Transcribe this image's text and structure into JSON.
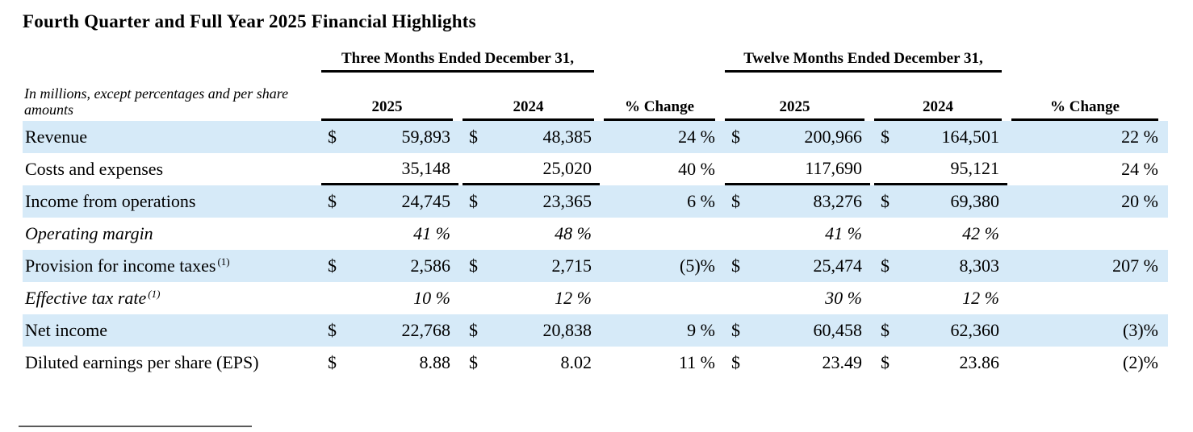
{
  "title": "Fourth Quarter and Full Year 2025 Financial Highlights",
  "table": {
    "note": "In millions, except percentages and per share amounts",
    "group_quarter": "Three Months Ended December 31,",
    "group_year": "Twelve Months Ended December 31,",
    "col_headers": {
      "q_2025": "2025",
      "q_2024": "2024",
      "q_change": "% Change",
      "y_2025": "2025",
      "y_2024": "2024",
      "y_change": "% Change"
    },
    "rows": [
      {
        "label": "Revenue",
        "sup": "",
        "d1": "$",
        "v1": "59,893",
        "d2": "$",
        "v2": "48,385",
        "p1": "24 %",
        "d3": "$",
        "v3": "200,966",
        "d4": "$",
        "v4": "164,501",
        "p2": "22 %"
      },
      {
        "label": "Costs and expenses",
        "sup": "",
        "d1": "",
        "v1": "35,148",
        "d2": "",
        "v2": "25,020",
        "p1": "40 %",
        "d3": "",
        "v3": "117,690",
        "d4": "",
        "v4": "95,121",
        "p2": "24 %"
      },
      {
        "label": "Income from operations",
        "sup": "",
        "d1": "$",
        "v1": "24,745",
        "d2": "$",
        "v2": "23,365",
        "p1": "6 %",
        "d3": "$",
        "v3": "83,276",
        "d4": "$",
        "v4": "69,380",
        "p2": "20 %"
      },
      {
        "label": "Operating margin",
        "sup": "",
        "d1": "",
        "v1": "41 %",
        "d2": "",
        "v2": "48 %",
        "p1": "",
        "d3": "",
        "v3": "41 %",
        "d4": "",
        "v4": "42 %",
        "p2": ""
      },
      {
        "label": "Provision for income taxes",
        "sup": "(1)",
        "d1": "$",
        "v1": "2,586",
        "d2": "$",
        "v2": "2,715",
        "p1": "(5)%",
        "d3": "$",
        "v3": "25,474",
        "d4": "$",
        "v4": "8,303",
        "p2": "207 %"
      },
      {
        "label": "Effective tax rate",
        "sup": "(1)",
        "d1": "",
        "v1": "10 %",
        "d2": "",
        "v2": "12 %",
        "p1": "",
        "d3": "",
        "v3": "30 %",
        "d4": "",
        "v4": "12 %",
        "p2": ""
      },
      {
        "label": "Net income",
        "sup": "",
        "d1": "$",
        "v1": "22,768",
        "d2": "$",
        "v2": "20,838",
        "p1": "9 %",
        "d3": "$",
        "v3": "60,458",
        "d4": "$",
        "v4": "62,360",
        "p2": "(3)%"
      },
      {
        "label": "Diluted earnings per share (EPS)",
        "sup": "",
        "d1": "$",
        "v1": "8.88",
        "d2": "$",
        "v2": "8.02",
        "p1": "11 %",
        "d3": "$",
        "v3": "23.49",
        "d4": "$",
        "v4": "23.86",
        "p2": "(2)%"
      }
    ]
  },
  "colors": {
    "stripe_blue": "#d6eaf8",
    "rule_black": "#000000",
    "footnote_rule_gray": "#5a5a5a",
    "text": "#000000"
  }
}
